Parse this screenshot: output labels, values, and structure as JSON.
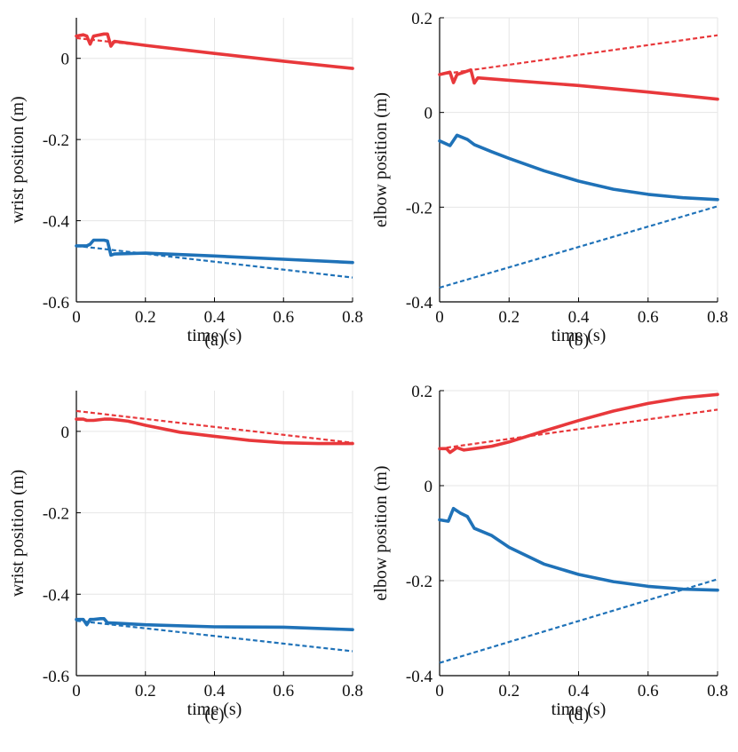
{
  "colors": {
    "red": "#e8383b",
    "blue": "#1f72b8",
    "grid": "#e6e6e6",
    "axis": "#000000"
  },
  "chart_data": [
    {
      "type": "line",
      "caption": "(a)",
      "xlabel": "time (s)",
      "ylabel": "wrist position (m)",
      "xlim": [
        0,
        0.8
      ],
      "ylim": [
        -0.6,
        0.1
      ],
      "xticks": [
        0,
        0.2,
        0.4,
        0.6,
        0.8
      ],
      "xtick_labels": [
        "0",
        "0.2",
        "0.4",
        "0.6",
        "0.8"
      ],
      "yticks": [
        0,
        -0.2,
        -0.4,
        -0.6
      ],
      "ytick_labels": [
        "0",
        "-0.2",
        "-0.4",
        "-0.6"
      ],
      "grid": true,
      "series": [
        {
          "color": "red",
          "style": "solid",
          "x": [
            0,
            0.02,
            0.03,
            0.04,
            0.05,
            0.08,
            0.09,
            0.1,
            0.11,
            0.2,
            0.4,
            0.6,
            0.8
          ],
          "y": [
            0.055,
            0.058,
            0.055,
            0.035,
            0.055,
            0.06,
            0.06,
            0.03,
            0.042,
            0.032,
            0.012,
            -0.007,
            -0.025
          ]
        },
        {
          "color": "red",
          "style": "dashed",
          "x": [
            0,
            0.8
          ],
          "y": [
            0.05,
            -0.025
          ]
        },
        {
          "color": "blue",
          "style": "solid",
          "x": [
            0,
            0.03,
            0.04,
            0.05,
            0.08,
            0.09,
            0.1,
            0.11,
            0.2,
            0.4,
            0.6,
            0.8
          ],
          "y": [
            -0.462,
            -0.462,
            -0.458,
            -0.448,
            -0.448,
            -0.45,
            -0.485,
            -0.482,
            -0.48,
            -0.487,
            -0.495,
            -0.503
          ]
        },
        {
          "color": "blue",
          "style": "dashed",
          "x": [
            0,
            0.8
          ],
          "y": [
            -0.462,
            -0.54
          ]
        }
      ]
    },
    {
      "type": "line",
      "caption": "(b)",
      "xlabel": "time (s)",
      "ylabel": "elbow position (m)",
      "xlim": [
        0,
        0.8
      ],
      "ylim": [
        -0.4,
        0.2
      ],
      "xticks": [
        0,
        0.2,
        0.4,
        0.6,
        0.8
      ],
      "xtick_labels": [
        "0",
        "0.2",
        "0.4",
        "0.6",
        "0.8"
      ],
      "yticks": [
        0.2,
        0,
        -0.2,
        -0.4
      ],
      "ytick_labels": [
        "0.2",
        "0",
        "-0.2",
        "-0.4"
      ],
      "grid": true,
      "series": [
        {
          "color": "red",
          "style": "solid",
          "x": [
            0,
            0.03,
            0.04,
            0.05,
            0.09,
            0.1,
            0.11,
            0.2,
            0.4,
            0.6,
            0.8
          ],
          "y": [
            0.08,
            0.085,
            0.063,
            0.08,
            0.09,
            0.062,
            0.073,
            0.068,
            0.057,
            0.043,
            0.028
          ]
        },
        {
          "color": "red",
          "style": "dashed",
          "x": [
            0,
            0.8
          ],
          "y": [
            0.08,
            0.163
          ]
        },
        {
          "color": "blue",
          "style": "solid",
          "x": [
            0,
            0.03,
            0.05,
            0.08,
            0.1,
            0.15,
            0.2,
            0.3,
            0.4,
            0.5,
            0.6,
            0.7,
            0.8
          ],
          "y": [
            -0.06,
            -0.07,
            -0.048,
            -0.057,
            -0.068,
            -0.083,
            -0.097,
            -0.123,
            -0.145,
            -0.162,
            -0.173,
            -0.18,
            -0.184
          ]
        },
        {
          "color": "blue",
          "style": "dashed",
          "x": [
            0,
            0.8
          ],
          "y": [
            -0.37,
            -0.198
          ]
        }
      ]
    },
    {
      "type": "line",
      "caption": "(c)",
      "xlabel": "time (s)",
      "ylabel": "wrist position (m)",
      "xlim": [
        0,
        0.8
      ],
      "ylim": [
        -0.6,
        0.1
      ],
      "xticks": [
        0,
        0.2,
        0.4,
        0.6,
        0.8
      ],
      "xtick_labels": [
        "0",
        "0.2",
        "0.4",
        "0.6",
        "0.8"
      ],
      "yticks": [
        0,
        -0.2,
        -0.4,
        -0.6
      ],
      "ytick_labels": [
        "0",
        "-0.2",
        "-0.4",
        "-0.6"
      ],
      "grid": true,
      "series": [
        {
          "color": "red",
          "style": "solid",
          "x": [
            0,
            0.02,
            0.03,
            0.05,
            0.08,
            0.1,
            0.15,
            0.2,
            0.3,
            0.4,
            0.5,
            0.6,
            0.7,
            0.8
          ],
          "y": [
            0.03,
            0.03,
            0.027,
            0.027,
            0.03,
            0.03,
            0.025,
            0.015,
            -0.002,
            -0.012,
            -0.022,
            -0.028,
            -0.03,
            -0.03
          ]
        },
        {
          "color": "red",
          "style": "dashed",
          "x": [
            0,
            0.8
          ],
          "y": [
            0.05,
            -0.028
          ]
        },
        {
          "color": "blue",
          "style": "solid",
          "x": [
            0,
            0.02,
            0.03,
            0.04,
            0.05,
            0.07,
            0.08,
            0.09,
            0.2,
            0.4,
            0.6,
            0.8
          ],
          "y": [
            -0.462,
            -0.462,
            -0.475,
            -0.462,
            -0.462,
            -0.46,
            -0.46,
            -0.47,
            -0.475,
            -0.48,
            -0.481,
            -0.487
          ]
        },
        {
          "color": "blue",
          "style": "dashed",
          "x": [
            0,
            0.8
          ],
          "y": [
            -0.465,
            -0.54
          ]
        }
      ]
    },
    {
      "type": "line",
      "caption": "(d)",
      "xlabel": "time (s)",
      "ylabel": "elbow position (m)",
      "xlim": [
        0,
        0.8
      ],
      "ylim": [
        -0.4,
        0.2
      ],
      "xticks": [
        0,
        0.2,
        0.4,
        0.6,
        0.8
      ],
      "xtick_labels": [
        "0",
        "0.2",
        "0.4",
        "0.6",
        "0.8"
      ],
      "yticks": [
        0.2,
        0,
        -0.2,
        -0.4
      ],
      "ytick_labels": [
        "0.2",
        "0",
        "-0.2",
        "-0.4"
      ],
      "grid": true,
      "series": [
        {
          "color": "red",
          "style": "solid",
          "x": [
            0,
            0.02,
            0.03,
            0.05,
            0.07,
            0.1,
            0.15,
            0.2,
            0.3,
            0.4,
            0.5,
            0.6,
            0.7,
            0.8
          ],
          "y": [
            0.078,
            0.078,
            0.07,
            0.08,
            0.075,
            0.078,
            0.083,
            0.092,
            0.115,
            0.137,
            0.157,
            0.173,
            0.185,
            0.192
          ]
        },
        {
          "color": "red",
          "style": "dashed",
          "x": [
            0,
            0.8
          ],
          "y": [
            0.078,
            0.16
          ]
        },
        {
          "color": "blue",
          "style": "solid",
          "x": [
            0,
            0.025,
            0.04,
            0.06,
            0.08,
            0.1,
            0.15,
            0.2,
            0.3,
            0.4,
            0.5,
            0.6,
            0.7,
            0.8
          ],
          "y": [
            -0.072,
            -0.075,
            -0.048,
            -0.058,
            -0.065,
            -0.09,
            -0.105,
            -0.13,
            -0.165,
            -0.187,
            -0.202,
            -0.212,
            -0.218,
            -0.22
          ]
        },
        {
          "color": "blue",
          "style": "dashed",
          "x": [
            0,
            0.8
          ],
          "y": [
            -0.373,
            -0.197
          ]
        }
      ]
    }
  ]
}
